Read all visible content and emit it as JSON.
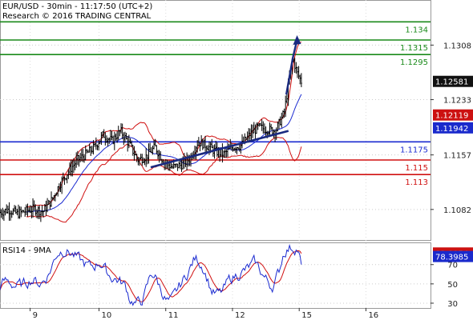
{
  "header": {
    "line1": "EUR/USD - 30min - 11:17:50 (UTC+2)",
    "line2": "Research © 2016 TRADING CENTRAL"
  },
  "rsi_title": "RSI14 - 9MA",
  "colors": {
    "green": "#1a8a1a",
    "red": "#d01010",
    "blue": "#1a2ad0",
    "navy": "#1a2a80",
    "band": "#d01010",
    "candle": "#000000",
    "tag_dark": "#111111",
    "tag_blue": "#1a2acc",
    "tag_red": "#cc1111"
  },
  "chart_data": {
    "type": "candlestick",
    "price_axis": {
      "ylim": [
        1.104,
        1.137
      ],
      "ticks": [
        1.1082,
        1.1157,
        1.1233,
        1.1308
      ]
    },
    "x_labels": [
      "9",
      "10",
      "11",
      "12",
      "15",
      "16"
    ],
    "levels": [
      {
        "price": 1.134,
        "label": "1.134",
        "color": "green"
      },
      {
        "price": 1.1315,
        "label": "1.1315",
        "color": "green"
      },
      {
        "price": 1.1295,
        "label": "1.1295",
        "color": "green"
      },
      {
        "price": 1.1175,
        "label": "1.1175",
        "color": "blue"
      },
      {
        "price": 1.115,
        "label": "1.115",
        "color": "red"
      },
      {
        "price": 1.113,
        "label": "1.113",
        "color": "red"
      }
    ],
    "price_tags": [
      {
        "price": 1.12581,
        "label": "1.12581",
        "color": "tag_dark"
      },
      {
        "price": 1.12119,
        "label": "1.12119",
        "color": "tag_red"
      },
      {
        "price": 1.11942,
        "label": "1.11942",
        "color": "tag_blue"
      }
    ],
    "trendline": {
      "from": [
        0.35,
        1.114
      ],
      "to": [
        0.67,
        1.119
      ]
    },
    "projection": [
      [
        0.665,
        1.124
      ],
      [
        0.68,
        1.129
      ],
      [
        0.69,
        1.1315
      ]
    ],
    "rsi": {
      "ylim": [
        25,
        93
      ],
      "ticks": [
        30,
        50,
        70
      ],
      "tags": [
        {
          "value": 82.0054,
          "label": "82.0054",
          "color": "tag_red"
        },
        {
          "value": 78.3985,
          "label": "78.3985",
          "color": "tag_blue"
        }
      ]
    },
    "series": [
      {
        "name": "",
        "points": [
          [
            0.0,
            1.1078
          ],
          [
            0.02,
            1.1082
          ],
          [
            0.04,
            1.1076
          ],
          [
            0.06,
            1.108
          ],
          [
            0.08,
            1.1083
          ],
          [
            0.1,
            1.1079
          ],
          [
            0.12,
            1.1095
          ],
          [
            0.14,
            1.1118
          ],
          [
            0.16,
            1.1135
          ],
          [
            0.18,
            1.115
          ],
          [
            0.2,
            1.1158
          ],
          [
            0.22,
            1.1168
          ],
          [
            0.24,
            1.1185
          ],
          [
            0.26,
            1.1176
          ],
          [
            0.28,
            1.119
          ],
          [
            0.3,
            1.1172
          ],
          [
            0.32,
            1.115
          ],
          [
            0.34,
            1.1155
          ],
          [
            0.36,
            1.1168
          ],
          [
            0.38,
            1.1148
          ],
          [
            0.4,
            1.114
          ],
          [
            0.42,
            1.1143
          ],
          [
            0.44,
            1.1151
          ],
          [
            0.46,
            1.1175
          ],
          [
            0.48,
            1.117
          ],
          [
            0.5,
            1.1162
          ],
          [
            0.52,
            1.1158
          ],
          [
            0.54,
            1.1168
          ],
          [
            0.56,
            1.117
          ],
          [
            0.58,
            1.1185
          ],
          [
            0.6,
            1.1195
          ],
          [
            0.62,
            1.1192
          ],
          [
            0.64,
            1.119
          ],
          [
            0.66,
            1.1215
          ],
          [
            0.68,
            1.129
          ],
          [
            0.69,
            1.127
          ],
          [
            0.7,
            1.1258
          ]
        ]
      }
    ]
  }
}
